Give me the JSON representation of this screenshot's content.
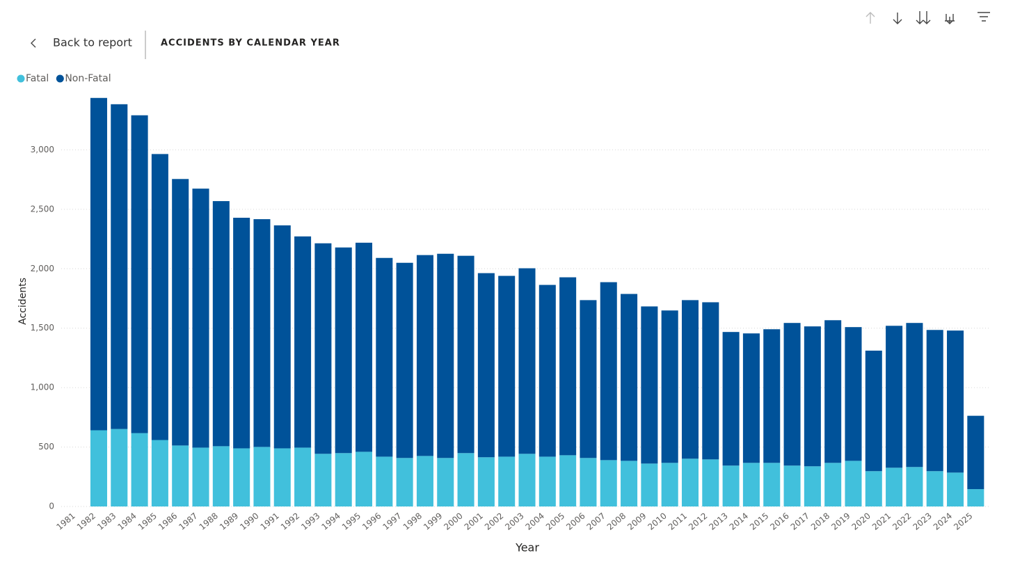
{
  "back_link": "Back to report",
  "chart_data": {
    "type": "stacked_bar",
    "title": "ACCIDENTS BY CALENDAR YEAR",
    "x_label": "Year",
    "y_label": "Accidents",
    "legend": "top-left",
    "grid": true,
    "categories": [
      "1981",
      "1982",
      "1983",
      "1984",
      "1985",
      "1986",
      "1987",
      "1988",
      "1989",
      "1990",
      "1991",
      "1992",
      "1993",
      "1994",
      "1995",
      "1996",
      "1997",
      "1998",
      "1999",
      "2000",
      "2001",
      "2002",
      "2003",
      "2004",
      "2005",
      "2006",
      "2007",
      "2008",
      "2009",
      "2010",
      "2011",
      "2012",
      "2013",
      "2014",
      "2015",
      "2016",
      "2017",
      "2018",
      "2019",
      "2020",
      "2021",
      "2022",
      "2023",
      "2024",
      "2025"
    ],
    "series": [
      {
        "name": "Fatal",
        "color": "#41c0dc",
        "values": [
          null,
          641,
          652,
          617,
          559,
          513,
          495,
          507,
          489,
          501,
          489,
          495,
          443,
          449,
          460,
          419,
          408,
          425,
          408,
          449,
          414,
          419,
          443,
          419,
          431,
          408,
          390,
          384,
          361,
          367,
          402,
          396,
          344,
          367,
          367,
          344,
          338,
          367,
          384,
          297,
          326,
          332,
          297,
          285,
          146
        ]
      },
      {
        "name": "Non-Fatal",
        "color": "#005299",
        "values": [
          null,
          2796,
          2732,
          2674,
          2406,
          2242,
          2179,
          2062,
          1940,
          1916,
          1876,
          1777,
          1771,
          1730,
          1759,
          1672,
          1642,
          1690,
          1718,
          1660,
          1549,
          1521,
          1561,
          1445,
          1497,
          1328,
          1497,
          1404,
          1322,
          1282,
          1334,
          1322,
          1124,
          1089,
          1124,
          1200,
          1177,
          1200,
          1125,
          1014,
          1194,
          1212,
          1188,
          1195,
          617
        ]
      }
    ],
    "ylim": [
      0,
      3500
    ],
    "yticks": [
      0,
      500,
      {
        "value": 1000,
        "label": "1,000"
      },
      {
        "value": 1500,
        "label": "1,500"
      },
      {
        "value": 2000,
        "label": "2,000"
      },
      {
        "value": 2500,
        "label": "2,500"
      },
      {
        "value": 3000,
        "label": "3,000"
      }
    ]
  }
}
